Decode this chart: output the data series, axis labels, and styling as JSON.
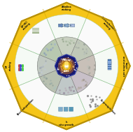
{
  "fig_width": 1.9,
  "fig_height": 1.89,
  "dpi": 100,
  "bg_color": "#FFFFFF",
  "outer_color": "#F5C518",
  "outer_border_color": "#D4A800",
  "white_fill": "#FFFFFF",
  "inner_panel_bg": "#E8E0D0",
  "center_dark": "#1A1A6E",
  "segment_labels": [
    "Alkaline etching",
    "Electrochemical etching",
    "Layer and molten salt",
    "Co-precipitation",
    "In situ growth",
    "Electrodeposition",
    "HF etching",
    "LiF-HCl etching"
  ],
  "label_angles_deg": [
    90,
    45,
    0,
    -45,
    -90,
    -135,
    180,
    135
  ],
  "label_rotations": [
    0,
    -45,
    -90,
    -45,
    0,
    45,
    90,
    45
  ],
  "panel_colors": [
    "#C8D0C0",
    "#B8C8B0",
    "#C0C8C0",
    "#B8C0B0",
    "#C0C8C8",
    "#C8C0C8",
    "#C8C0B8",
    "#C0C8B8"
  ],
  "seg_fill_colors": [
    "#F5FAF5",
    "#FAFAFA",
    "#F5FAF5",
    "#FAFAFA",
    "#F5FAF5",
    "#FAFAFA",
    "#F5FAF5",
    "#FAFAFA"
  ],
  "green_line_color": "#88CC88",
  "separator_color": "#99CC99",
  "outer_r": 0.96,
  "mid_r": 0.78,
  "inner_r": 0.44,
  "center_r": 0.175
}
